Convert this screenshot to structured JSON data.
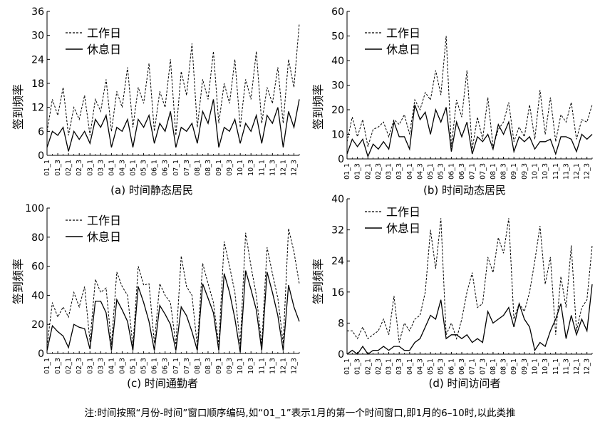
{
  "footnote": "注:时间按照“月份-时间”窗口顺序编码,如“01_1”表示1月的第一个时间窗口,即1月的6–10时,以此类推",
  "chart_data": [
    {
      "type": "line",
      "title": "(a) 时间静态居民",
      "ylabel": "签到频率",
      "ylim": [
        0,
        36
      ],
      "yticks": [
        0,
        6,
        12,
        18,
        24,
        30,
        36
      ],
      "x_tick_labels": [
        "01_1",
        "01_3",
        "02_1",
        "02_3",
        "03_1",
        "03_3",
        "04_1",
        "04_3",
        "05_1",
        "05_3",
        "06_1",
        "06_3",
        "07_1",
        "07_3",
        "08_1",
        "08_3",
        "09_1",
        "09_3",
        "10_1",
        "10_3",
        "11_1",
        "11_3",
        "12_1",
        "12_3"
      ],
      "legend": "top-left",
      "series": [
        {
          "name": "工作日",
          "style": "dashed",
          "values": [
            6,
            14,
            10,
            17,
            5,
            12,
            9,
            15,
            5,
            14,
            11,
            19,
            6,
            16,
            12,
            22,
            7,
            17,
            13,
            23,
            6,
            16,
            12,
            24,
            5,
            21,
            15,
            28,
            7,
            19,
            14,
            26,
            8,
            18,
            13,
            24,
            7,
            19,
            14,
            26,
            8,
            17,
            13,
            22,
            8,
            24,
            17,
            33
          ]
        },
        {
          "name": "休息日",
          "style": "solid",
          "values": [
            2,
            6,
            5,
            7,
            1,
            6,
            4,
            6,
            3,
            9,
            7,
            10,
            2,
            7,
            6,
            9,
            2,
            9,
            7,
            10,
            3,
            8,
            6,
            11,
            2,
            7,
            6,
            8,
            3,
            11,
            8,
            14,
            2,
            7,
            6,
            9,
            3,
            8,
            6,
            10,
            3,
            10,
            8,
            12,
            2,
            11,
            7,
            14
          ]
        }
      ]
    },
    {
      "type": "line",
      "title": "(b) 时间动态居民",
      "ylabel": "签到频率",
      "ylim": [
        0,
        60
      ],
      "yticks": [
        0,
        10,
        20,
        30,
        40,
        50,
        60
      ],
      "x_tick_labels": [
        "01_1",
        "01_3",
        "02_1",
        "02_3",
        "03_1",
        "03_3",
        "04_1",
        "04_3",
        "05_1",
        "05_3",
        "06_1",
        "06_3",
        "07_1",
        "07_3",
        "08_1",
        "08_3",
        "09_1",
        "09_3",
        "10_1",
        "10_3",
        "11_1",
        "11_3",
        "12_1",
        "12_3"
      ],
      "legend": "top-left",
      "series": [
        {
          "name": "工作日",
          "style": "dashed",
          "values": [
            7,
            17,
            9,
            16,
            5,
            12,
            13,
            15,
            9,
            16,
            14,
            18,
            10,
            24,
            20,
            27,
            24,
            36,
            26,
            50,
            5,
            24,
            17,
            36,
            4,
            17,
            8,
            25,
            5,
            12,
            15,
            23,
            7,
            13,
            9,
            22,
            8,
            28,
            10,
            25,
            7,
            18,
            15,
            23,
            8,
            16,
            15,
            22
          ]
        },
        {
          "name": "休息日",
          "style": "solid",
          "values": [
            2,
            8,
            5,
            8,
            1,
            6,
            4,
            7,
            4,
            15,
            9,
            9,
            4,
            22,
            16,
            19,
            10,
            20,
            15,
            21,
            3,
            15,
            9,
            15,
            2,
            9,
            7,
            10,
            4,
            14,
            10,
            15,
            3,
            9,
            7,
            9,
            4,
            7,
            7,
            8,
            2,
            9,
            9,
            8,
            3,
            10,
            8,
            10
          ]
        }
      ]
    },
    {
      "type": "line",
      "title": "(c) 时间通勤者",
      "ylabel": "签到频率",
      "ylim": [
        0,
        100
      ],
      "yticks": [
        0,
        20,
        40,
        60,
        80,
        100
      ],
      "x_tick_labels": [
        "01_1",
        "01_3",
        "02_1",
        "02_3",
        "03_1",
        "03_3",
        "04_1",
        "04_3",
        "05_1",
        "05_3",
        "06_1",
        "06_3",
        "07_1",
        "07_3",
        "08_1",
        "08_3",
        "09_1",
        "09_3",
        "10_1",
        "10_3",
        "11_1",
        "11_3",
        "12_1",
        "12_3"
      ],
      "legend": "top-left",
      "series": [
        {
          "name": "工作日",
          "style": "dashed",
          "values": [
            5,
            35,
            25,
            32,
            25,
            42,
            32,
            46,
            8,
            51,
            42,
            45,
            6,
            56,
            46,
            40,
            5,
            60,
            47,
            48,
            7,
            48,
            40,
            35,
            6,
            67,
            46,
            40,
            5,
            62,
            48,
            35,
            6,
            77,
            60,
            42,
            6,
            83,
            60,
            40,
            6,
            73,
            55,
            38,
            7,
            86,
            70,
            48
          ]
        },
        {
          "name": "休息日",
          "style": "solid",
          "values": [
            2,
            19,
            15,
            12,
            4,
            20,
            18,
            17,
            3,
            36,
            36,
            28,
            2,
            37,
            30,
            22,
            2,
            46,
            35,
            22,
            2,
            33,
            27,
            20,
            2,
            32,
            26,
            15,
            2,
            48,
            38,
            28,
            2,
            55,
            42,
            24,
            1,
            57,
            44,
            30,
            2,
            56,
            42,
            26,
            2,
            47,
            32,
            22
          ]
        }
      ]
    },
    {
      "type": "line",
      "title": "(d) 时间访问者",
      "ylabel": "签到频率",
      "ylim": [
        0,
        40
      ],
      "yticks": [
        0,
        8,
        16,
        24,
        32,
        40
      ],
      "x_tick_labels": [
        "01_1",
        "01_3",
        "02_1",
        "02_3",
        "03_1",
        "03_3",
        "04_1",
        "04_3",
        "05_1",
        "05_3",
        "06_1",
        "06_3",
        "07_1",
        "07_3",
        "08_1",
        "08_3",
        "09_1",
        "09_3",
        "10_1",
        "10_3",
        "11_1",
        "11_3",
        "12_1",
        "12_3"
      ],
      "legend": "top-left",
      "series": [
        {
          "name": "工作日",
          "style": "dashed",
          "values": [
            6,
            6,
            4,
            7,
            4,
            5,
            6,
            9,
            5,
            15,
            3,
            8,
            6,
            9,
            10,
            16,
            32,
            22,
            35,
            5,
            8,
            4,
            9,
            16,
            21,
            12,
            13,
            25,
            21,
            30,
            26,
            35,
            9,
            13,
            11,
            16,
            24,
            33,
            18,
            25,
            5,
            20,
            12,
            28,
            6,
            12,
            14,
            28
          ]
        },
        {
          "name": "休息日",
          "style": "solid",
          "values": [
            0,
            1,
            0,
            2,
            0,
            1,
            1,
            2,
            1,
            2,
            2,
            1,
            1,
            3,
            4,
            7,
            10,
            9,
            14,
            4,
            5,
            5,
            4,
            5,
            3,
            4,
            3,
            11,
            8,
            9,
            10,
            12,
            7,
            13,
            9,
            7,
            1,
            3,
            2,
            6,
            9,
            13,
            4,
            10,
            5,
            9,
            6,
            18
          ]
        }
      ]
    }
  ]
}
